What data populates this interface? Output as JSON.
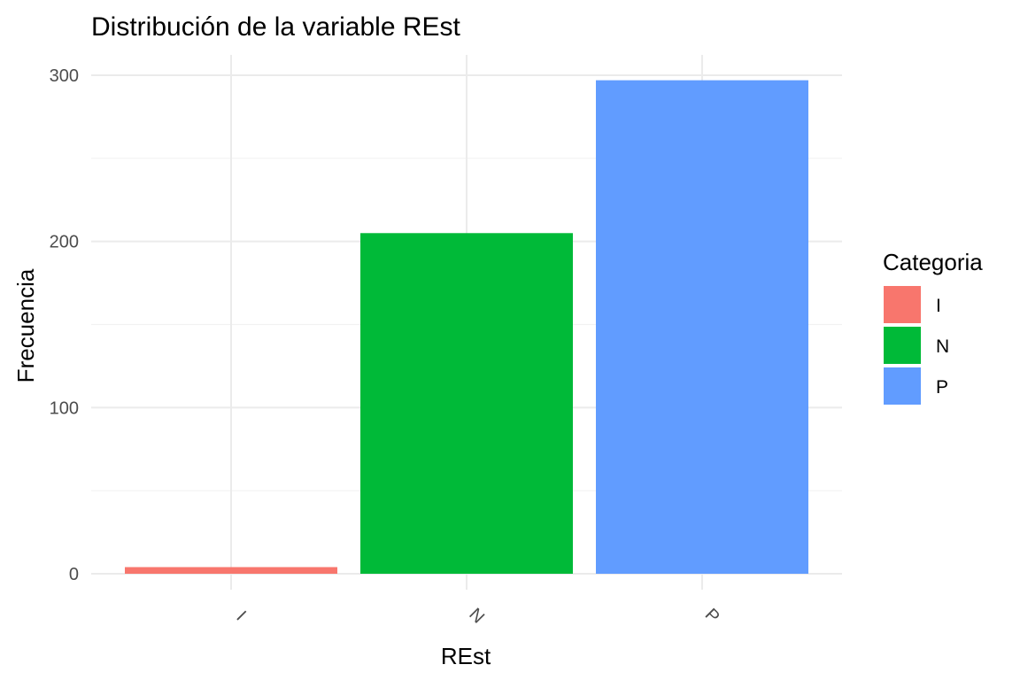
{
  "chart_data": {
    "type": "bar",
    "title": "Distribución de la variable REst",
    "xlabel": "REst",
    "ylabel": "Frecuencia",
    "categories": [
      "I",
      "N",
      "P"
    ],
    "values": [
      4,
      205,
      297
    ],
    "colors": [
      "#F8766D",
      "#00BA38",
      "#619CFF"
    ],
    "ylim": [
      0,
      310
    ],
    "yticks": [
      0,
      100,
      200,
      300
    ],
    "grid": true,
    "x_tick_rotation": 45,
    "legend": {
      "title": "Categoria",
      "placement": "right",
      "entries": [
        "I",
        "N",
        "P"
      ]
    }
  }
}
